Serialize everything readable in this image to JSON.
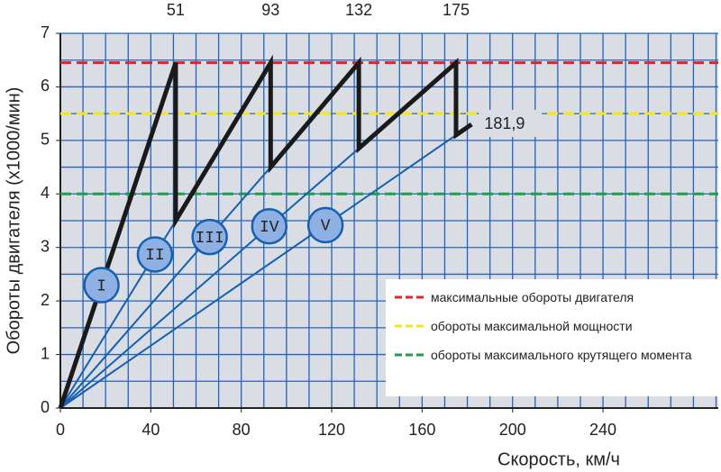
{
  "chart_data": {
    "type": "line",
    "x_label": "Скорость, км/ч",
    "y_label": "Обороты двигателя (x1000/мин)",
    "xlim": [
      0,
      291
    ],
    "ylim": [
      0,
      7
    ],
    "xticks": [
      0,
      40,
      80,
      120,
      160,
      200,
      240
    ],
    "yticks": [
      0,
      1,
      2,
      3,
      4,
      5,
      6,
      7
    ],
    "x_grid_step": 10,
    "y_grid_step": 0.5,
    "grid": true,
    "legend": "lower right",
    "shift_speeds": [
      51,
      93,
      132,
      175
    ],
    "reference_lines": [
      {
        "name": "максимальные обороты двигателя",
        "color": "#e0262a",
        "value": 6.45
      },
      {
        "name": "обороты максимальной мощности",
        "color": "#f2e61c",
        "value": 5.5
      },
      {
        "name": "обороты максимального крутящего момента",
        "color": "#1e9e4a",
        "value": 4.0
      }
    ],
    "series": [
      {
        "name": "I",
        "color": "#1560b0",
        "x": [
          0,
          51
        ],
        "values": [
          0,
          6.45
        ]
      },
      {
        "name": "II",
        "color": "#1560b0",
        "x": [
          0,
          51
        ],
        "values": [
          0,
          3.5
        ]
      },
      {
        "name": "III",
        "color": "#1560b0",
        "x": [
          0,
          93
        ],
        "values": [
          0,
          4.5
        ]
      },
      {
        "name": "IV",
        "color": "#1560b0",
        "x": [
          0,
          132
        ],
        "values": [
          0,
          4.85
        ]
      },
      {
        "name": "V",
        "color": "#1560b0",
        "x": [
          0,
          175
        ],
        "values": [
          0,
          5.1
        ]
      }
    ],
    "rpm_trace": {
      "color": "#1a1a1a",
      "x": [
        0,
        51,
        51,
        93,
        93,
        132,
        132,
        175,
        175,
        181.9
      ],
      "values": [
        0,
        6.45,
        3.5,
        6.45,
        4.5,
        6.45,
        4.85,
        6.45,
        5.1,
        5.3
      ]
    },
    "end_label": {
      "value": 181.9,
      "label": "181,9"
    }
  }
}
